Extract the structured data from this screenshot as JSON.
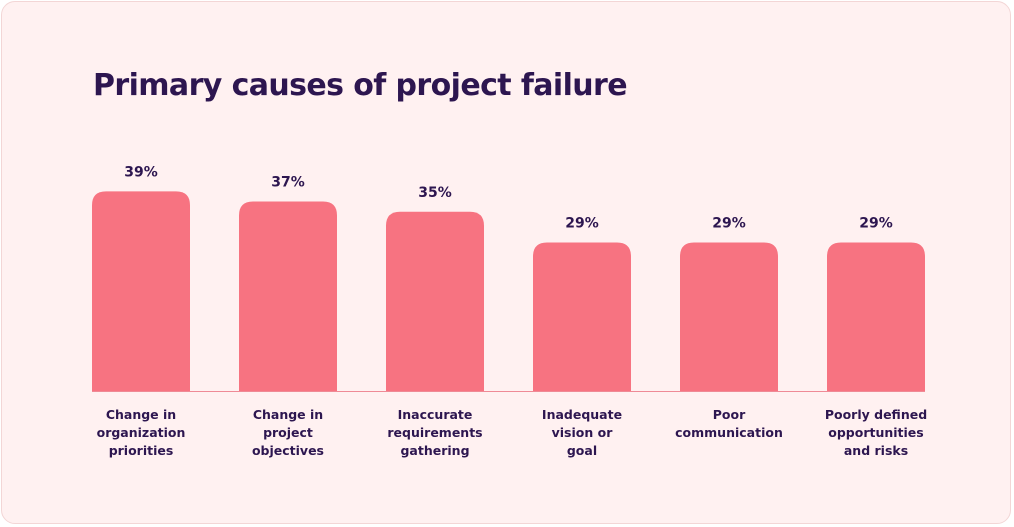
{
  "chart_data": {
    "type": "bar",
    "title": "Primary causes of project failure",
    "categories": [
      "Change in organization priorities",
      "Change in project objectives",
      "Inaccurate requirements gathering",
      "Inadequate vision or goal",
      "Poor communication",
      "Poorly defined opportunities and risks"
    ],
    "category_lines": [
      [
        "Change in",
        "organization",
        "priorities"
      ],
      [
        "Change in",
        "project",
        "objectives"
      ],
      [
        "Inaccurate",
        "requirements",
        "gathering"
      ],
      [
        "Inadequate",
        "vision or",
        "goal"
      ],
      [
        "Poor",
        "communication"
      ],
      [
        "Poorly defined",
        "opportunities",
        "and risks"
      ]
    ],
    "values": [
      39,
      37,
      35,
      29,
      29,
      29
    ],
    "value_labels": [
      "39%",
      "37%",
      "35%",
      "29%",
      "29%",
      "29%"
    ],
    "xlabel": "",
    "ylabel": "",
    "grid": false,
    "colors": {
      "bar": "#f77381",
      "baseline": "#ef8a96",
      "text": "#2d1650",
      "background": "#fff1f1"
    }
  }
}
